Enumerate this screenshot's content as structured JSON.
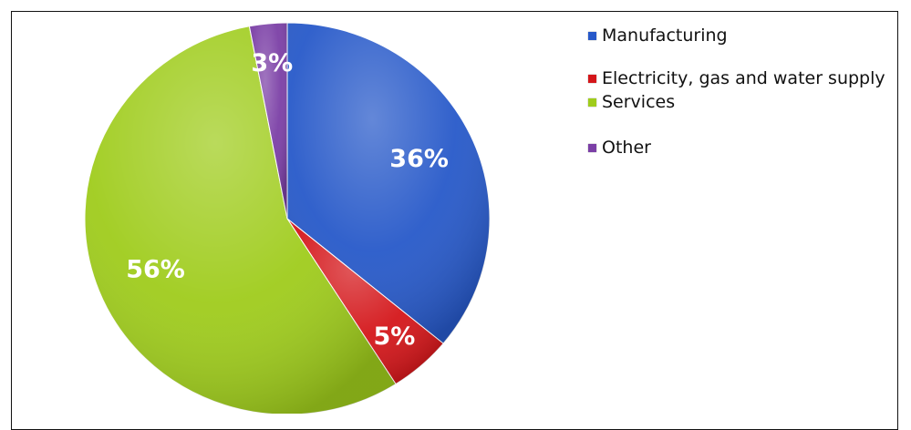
{
  "chart_data": {
    "type": "pie",
    "title": "",
    "slices": [
      {
        "label": "Manufacturing",
        "value": 36,
        "display": "36%",
        "color": "#2759c9"
      },
      {
        "label": "Electricity, gas and water supply",
        "value": 5,
        "display": "5%",
        "color": "#d4161a"
      },
      {
        "label": "Services",
        "value": 56,
        "display": "56%",
        "color": "#9fcc1c"
      },
      {
        "label": "Other",
        "value": 3,
        "display": "3%",
        "color": "#7b3fa6"
      }
    ],
    "legend_placement": "right"
  }
}
